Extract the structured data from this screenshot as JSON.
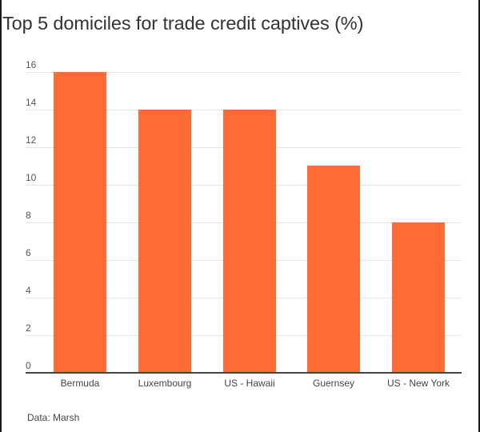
{
  "chart_data": {
    "type": "bar",
    "title": "Top 5 domiciles for trade credit captives (%)",
    "categories": [
      "Bermuda",
      "Luxembourg",
      "US - Hawaii",
      "Guernsey",
      "US - New York"
    ],
    "values": [
      16,
      14,
      14,
      11,
      8
    ],
    "xlabel": "",
    "ylabel": "",
    "ylim": [
      0,
      16
    ],
    "yticks": [
      0,
      2,
      4,
      6,
      8,
      10,
      12,
      14,
      16
    ],
    "grid": true,
    "legend": null,
    "bar_color": "#ff6b35",
    "source": "Data: Marsh"
  },
  "labels": {
    "title": "Top 5 domiciles for trade credit captives (%)",
    "source": "Data: Marsh",
    "yticks": [
      "0",
      "2",
      "4",
      "6",
      "8",
      "10",
      "12",
      "14",
      "16"
    ],
    "categories": [
      "Bermuda",
      "Luxembourg",
      "US - Hawaii",
      "Guernsey",
      "US - New York"
    ]
  }
}
